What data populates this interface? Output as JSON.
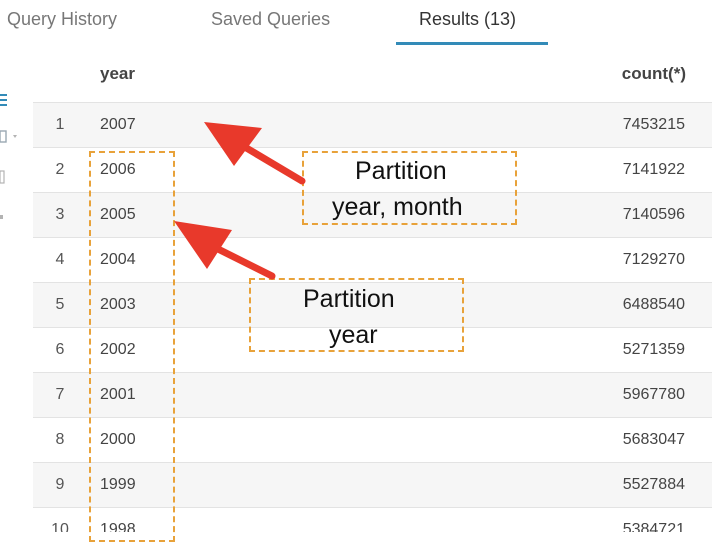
{
  "tabs": [
    {
      "label": "Query History"
    },
    {
      "label": "Saved Queries"
    },
    {
      "label": "Results (13)"
    }
  ],
  "accent_color": "#338bb8",
  "annotation_color": "#e8a23a",
  "arrow_color": "#e8392b",
  "table": {
    "columns": [
      "year",
      "count(*)"
    ],
    "rows": [
      {
        "index": "1",
        "year": "2007",
        "count": "7453215"
      },
      {
        "index": "2",
        "year": "2006",
        "count": "7141922"
      },
      {
        "index": "3",
        "year": "2005",
        "count": "7140596"
      },
      {
        "index": "4",
        "year": "2004",
        "count": "7129270"
      },
      {
        "index": "5",
        "year": "2003",
        "count": "6488540"
      },
      {
        "index": "6",
        "year": "2002",
        "count": "5271359"
      },
      {
        "index": "7",
        "year": "2001",
        "count": "5967780"
      },
      {
        "index": "8",
        "year": "2000",
        "count": "5683047"
      },
      {
        "index": "9",
        "year": "1999",
        "count": "5527884"
      },
      {
        "index": "10",
        "year": "1998",
        "count": "5384721"
      }
    ]
  },
  "annotations": {
    "year_month": {
      "line1": "Partition",
      "line2": "year, month"
    },
    "year": {
      "line1": "Partition",
      "line2": "year"
    }
  },
  "left_toolbar": [
    "list-icon",
    "grid-select-icon",
    "square-icon",
    "chart-icon"
  ]
}
